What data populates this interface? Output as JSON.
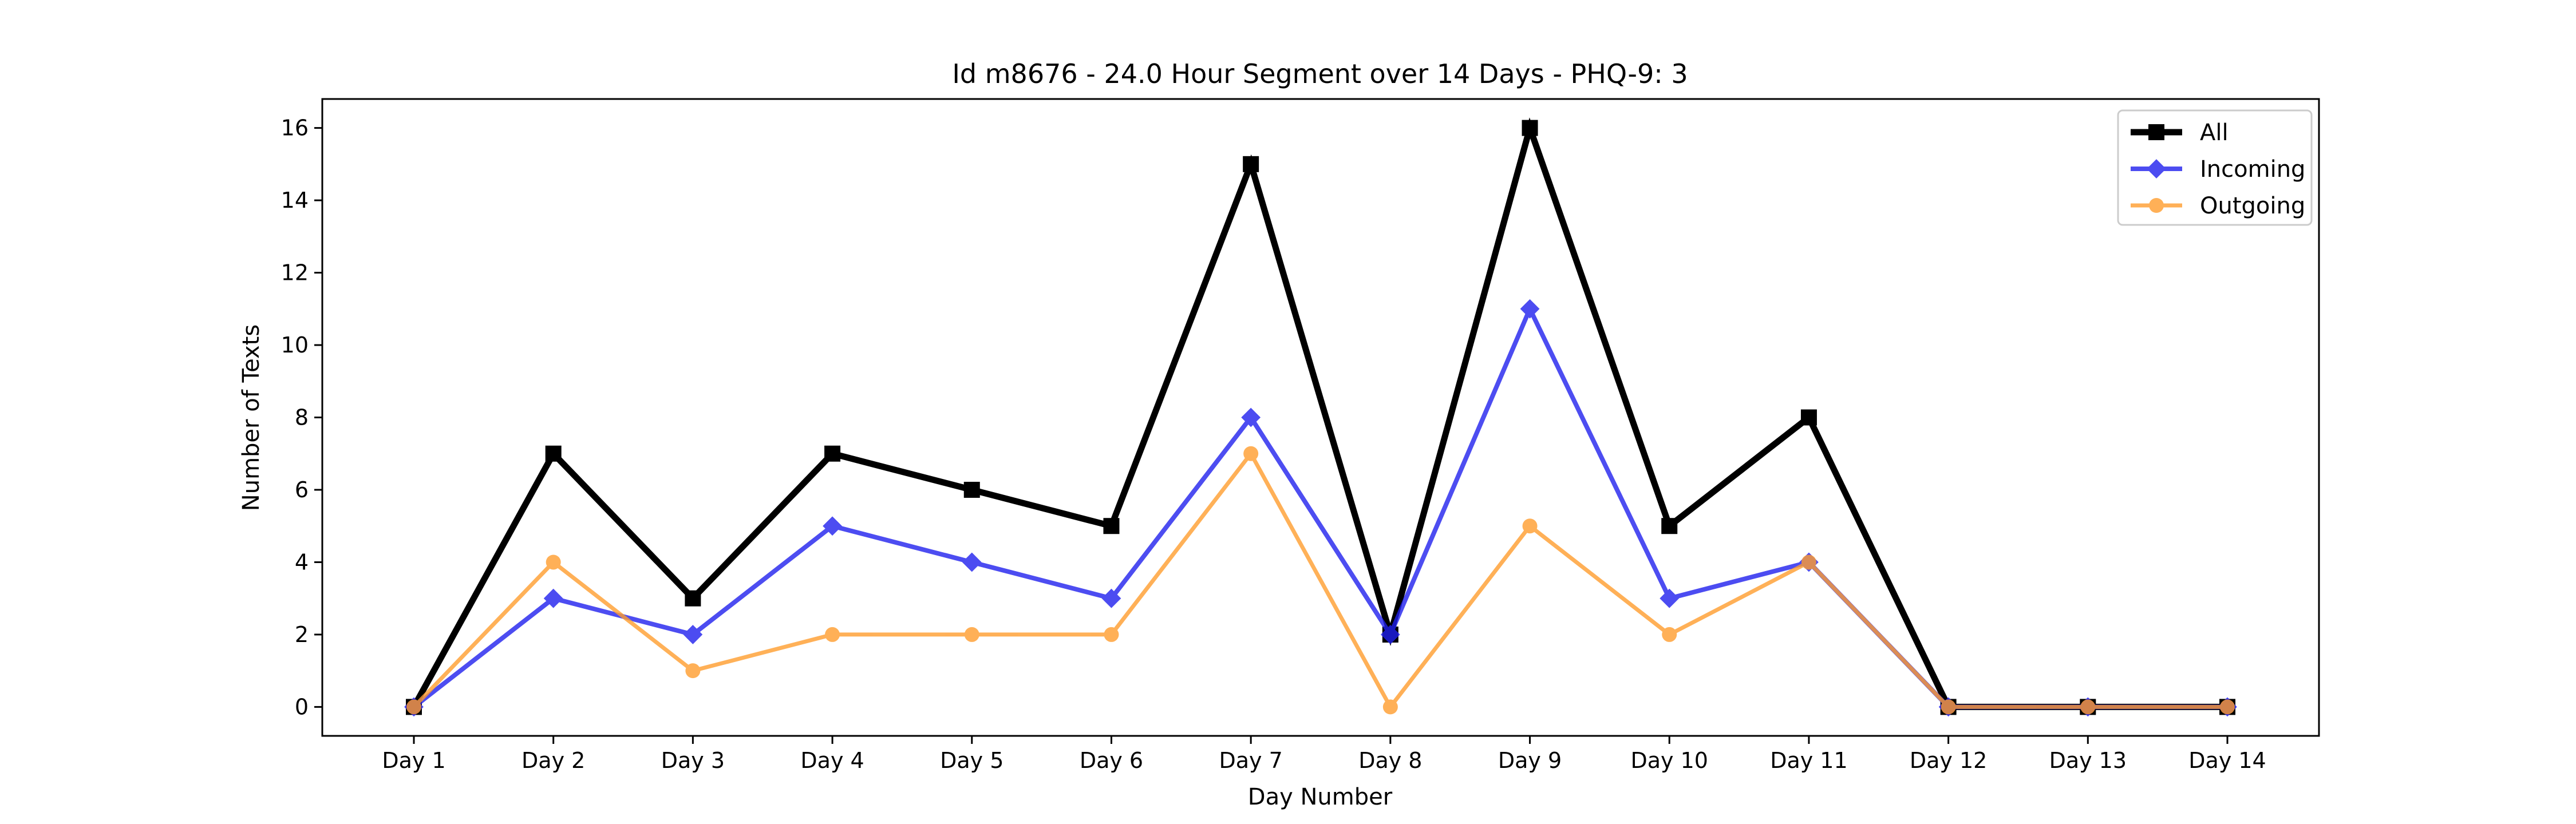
{
  "chart_data": {
    "type": "line",
    "title": "Id m8676 - 24.0 Hour Segment over 14 Days - PHQ-9: 3",
    "xlabel": "Day Number",
    "ylabel": "Number of Texts",
    "categories": [
      "Day 1",
      "Day 2",
      "Day 3",
      "Day 4",
      "Day 5",
      "Day 6",
      "Day 7",
      "Day 8",
      "Day 9",
      "Day 10",
      "Day 11",
      "Day 12",
      "Day 13",
      "Day 14"
    ],
    "ylim": [
      -0.8,
      16.8
    ],
    "yticks": [
      0,
      2,
      4,
      6,
      8,
      10,
      12,
      14,
      16
    ],
    "grid": false,
    "legend_position": "top-right",
    "series": [
      {
        "name": "All",
        "color": "#000000",
        "marker": "square",
        "values": [
          0,
          7,
          3,
          7,
          6,
          5,
          15,
          2,
          16,
          5,
          8,
          0,
          0,
          0
        ]
      },
      {
        "name": "Incoming",
        "color": "#2020ee",
        "marker": "diamond",
        "values": [
          0,
          3,
          2,
          5,
          4,
          3,
          8,
          2,
          11,
          3,
          4,
          0,
          0,
          0
        ]
      },
      {
        "name": "Outgoing",
        "color": "#ff9d2e",
        "marker": "circle",
        "values": [
          0,
          4,
          1,
          2,
          2,
          2,
          7,
          0,
          5,
          2,
          4,
          0,
          0,
          0
        ]
      }
    ]
  }
}
